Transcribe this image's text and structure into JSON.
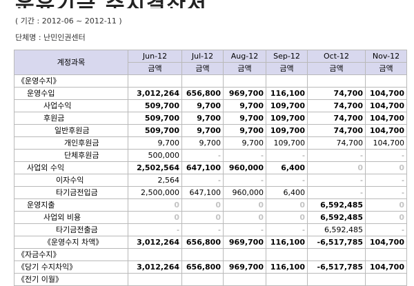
{
  "title": "운유기금 수지결산서",
  "period_text": "( 기간 :  2012-06 ~ 2012-11 )",
  "org_text": "단체명 : 난민인권센터",
  "table": {
    "account_header": "계정과목",
    "columns": [
      "Jun-12",
      "Jul-12",
      "Aug-12",
      "Sep-12",
      "Oct-12",
      "Nov-12"
    ],
    "sub_header": "금액",
    "rows": [
      {
        "label": "《운영수지》",
        "indent": 1,
        "bold": false,
        "cells": [
          "",
          "",
          "",
          "",
          "",
          ""
        ]
      },
      {
        "label": "운영수입",
        "indent": 2,
        "bold": true,
        "cells": [
          "3,012,264",
          "656,800",
          "969,700",
          "116,100",
          "74,700",
          "104,700"
        ]
      },
      {
        "label": "사업수익",
        "indent": 3,
        "bold": true,
        "cells": [
          "509,700",
          "9,700",
          "9,700",
          "109,700",
          "74,700",
          "104,700"
        ]
      },
      {
        "label": "후원금",
        "indent": 3,
        "bold": true,
        "cells": [
          "509,700",
          "9,700",
          "9,700",
          "109,700",
          "74,700",
          "104,700"
        ]
      },
      {
        "label": "일반후원금",
        "indent": 4,
        "bold": true,
        "cells": [
          "509,700",
          "9,700",
          "9,700",
          "109,700",
          "74,700",
          "104,700"
        ]
      },
      {
        "label": "개인후원금",
        "indent": 5,
        "bold": false,
        "cells": [
          "9,700",
          "9,700",
          "9,700",
          "109,700",
          "74,700",
          "104,700"
        ]
      },
      {
        "label": "단체후원금",
        "indent": 5,
        "bold": false,
        "cells": [
          "500,000",
          "-",
          "-",
          "-",
          "-",
          "-"
        ]
      },
      {
        "label": "사업외 수익",
        "indent": 2,
        "bold": true,
        "cells": [
          "2,502,564",
          "647,100",
          "960,000",
          "6,400",
          "0",
          "0"
        ]
      },
      {
        "label": "이자수익",
        "indent": 6,
        "bold": false,
        "cells": [
          "2,564",
          "-",
          "-",
          "-",
          "-",
          "-"
        ]
      },
      {
        "label": "타기금전입금",
        "indent": 6,
        "bold": false,
        "cells": [
          "2,500,000",
          "647,100",
          "960,000",
          "6,400",
          "-",
          "-"
        ]
      },
      {
        "label": "운영지출",
        "indent": 2,
        "bold": true,
        "cells": [
          "0",
          "0",
          "0",
          "0",
          "6,592,485",
          "0"
        ]
      },
      {
        "label": "사업외 비용",
        "indent": 3,
        "bold": true,
        "cells": [
          "0",
          "0",
          "0",
          "0",
          "6,592,485",
          "0"
        ]
      },
      {
        "label": "타기금전출금",
        "indent": 6,
        "bold": false,
        "cells": [
          "-",
          "-",
          "-",
          "-",
          "6,592,485",
          "-"
        ]
      },
      {
        "label": "《운영수지 차액》",
        "indent": 3,
        "bold": true,
        "cells": [
          "3,012,264",
          "656,800",
          "969,700",
          "116,100",
          "-6,517,785",
          "104,700"
        ]
      },
      {
        "label": "《자금수지》",
        "indent": 1,
        "bold": false,
        "cells": [
          "",
          "",
          "",
          "",
          "",
          ""
        ]
      },
      {
        "label": "《당기 수지차익》",
        "indent": 1,
        "bold": true,
        "cells": [
          "3,012,264",
          "656,800",
          "969,700",
          "116,100",
          "-6,517,785",
          "104,700"
        ]
      },
      {
        "label": "《전기 이월》",
        "indent": 1,
        "bold": false,
        "cells": [
          "",
          "",
          "",
          "",
          "",
          ""
        ]
      }
    ]
  }
}
